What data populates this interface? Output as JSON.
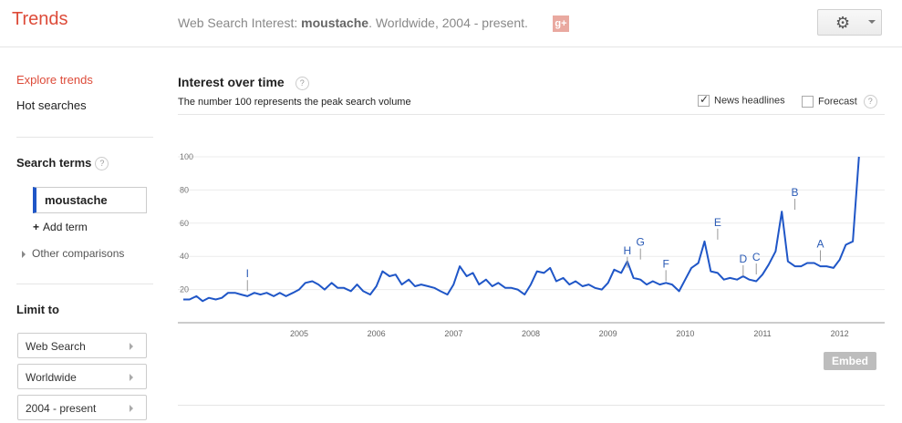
{
  "header": {
    "brand": "Trends",
    "query_prefix": "Web Search Interest: ",
    "query_term": "moustache",
    "query_suffix": ". Worldwide, 2004 - present.",
    "gplus_label": "g+",
    "gear_icon": "gear-icon"
  },
  "sidebar": {
    "nav": [
      {
        "label": "Explore trends",
        "active": true
      },
      {
        "label": "Hot searches",
        "active": false
      }
    ],
    "search_terms_label": "Search terms",
    "help_glyph": "?",
    "term": "moustache",
    "term_color": "#1f56c7",
    "add_term_label": "Add term",
    "other_comparisons_label": "Other comparisons",
    "limit_to_label": "Limit to",
    "limits": [
      "Web Search",
      "Worldwide",
      "2004 - present"
    ]
  },
  "main": {
    "title": "Interest over time",
    "subtitle": "The number 100 represents the peak search volume",
    "news_headlines_label": "News headlines",
    "news_headlines_checked": true,
    "forecast_label": "Forecast",
    "forecast_checked": false,
    "embed_label": "Embed"
  },
  "chart_data": {
    "type": "line",
    "ylim": [
      0,
      100
    ],
    "yticks": [
      20,
      40,
      60,
      80,
      100
    ],
    "ytick_labels": [
      "20",
      "40",
      "60",
      "80",
      "100"
    ],
    "xstart": 2004.0,
    "xend": 2013.0,
    "xticks": [
      2005,
      2006,
      2007,
      2008,
      2009,
      2010,
      2011,
      2012
    ],
    "xtick_labels": [
      "2005",
      "2006",
      "2007",
      "2008",
      "2009",
      "2010",
      "2011",
      "2012"
    ],
    "series": [
      {
        "color": "#1f56c7",
        "points": [
          [
            2004.0,
            14
          ],
          [
            2004.08,
            14
          ],
          [
            2004.17,
            16
          ],
          [
            2004.25,
            13
          ],
          [
            2004.33,
            15
          ],
          [
            2004.42,
            14
          ],
          [
            2004.5,
            15
          ],
          [
            2004.58,
            18
          ],
          [
            2004.67,
            18
          ],
          [
            2004.75,
            17
          ],
          [
            2004.83,
            16
          ],
          [
            2004.92,
            18
          ],
          [
            2005.0,
            17
          ],
          [
            2005.08,
            18
          ],
          [
            2005.17,
            16
          ],
          [
            2005.25,
            18
          ],
          [
            2005.33,
            16
          ],
          [
            2005.42,
            18
          ],
          [
            2005.5,
            20
          ],
          [
            2005.58,
            24
          ],
          [
            2005.67,
            25
          ],
          [
            2005.75,
            23
          ],
          [
            2005.83,
            20
          ],
          [
            2005.92,
            24
          ],
          [
            2006.0,
            21
          ],
          [
            2006.08,
            21
          ],
          [
            2006.17,
            19
          ],
          [
            2006.25,
            23
          ],
          [
            2006.33,
            19
          ],
          [
            2006.42,
            17
          ],
          [
            2006.5,
            22
          ],
          [
            2006.58,
            31
          ],
          [
            2006.67,
            28
          ],
          [
            2006.75,
            29
          ],
          [
            2006.83,
            23
          ],
          [
            2006.92,
            26
          ],
          [
            2007.0,
            22
          ],
          [
            2007.08,
            23
          ],
          [
            2007.17,
            22
          ],
          [
            2007.25,
            21
          ],
          [
            2007.33,
            19
          ],
          [
            2007.42,
            17
          ],
          [
            2007.5,
            23
          ],
          [
            2007.58,
            34
          ],
          [
            2007.67,
            28
          ],
          [
            2007.75,
            30
          ],
          [
            2007.83,
            23
          ],
          [
            2007.92,
            26
          ],
          [
            2008.0,
            22
          ],
          [
            2008.08,
            24
          ],
          [
            2008.17,
            21
          ],
          [
            2008.25,
            21
          ],
          [
            2008.33,
            20
          ],
          [
            2008.42,
            17
          ],
          [
            2008.5,
            23
          ],
          [
            2008.58,
            31
          ],
          [
            2008.67,
            30
          ],
          [
            2008.75,
            33
          ],
          [
            2008.83,
            25
          ],
          [
            2008.92,
            27
          ],
          [
            2009.0,
            23
          ],
          [
            2009.08,
            25
          ],
          [
            2009.17,
            22
          ],
          [
            2009.25,
            23
          ],
          [
            2009.33,
            21
          ],
          [
            2009.42,
            20
          ],
          [
            2009.5,
            24
          ],
          [
            2009.58,
            32
          ],
          [
            2009.67,
            30
          ],
          [
            2009.75,
            37
          ],
          [
            2009.83,
            27
          ],
          [
            2009.92,
            26
          ],
          [
            2010.0,
            23
          ],
          [
            2010.08,
            25
          ],
          [
            2010.17,
            23
          ],
          [
            2010.25,
            24
          ],
          [
            2010.33,
            23
          ],
          [
            2010.42,
            19
          ],
          [
            2010.5,
            26
          ],
          [
            2010.58,
            33
          ],
          [
            2010.67,
            36
          ],
          [
            2010.75,
            49
          ],
          [
            2010.83,
            31
          ],
          [
            2010.92,
            30
          ],
          [
            2011.0,
            26
          ],
          [
            2011.08,
            27
          ],
          [
            2011.17,
            26
          ],
          [
            2011.25,
            28
          ],
          [
            2011.33,
            26
          ],
          [
            2011.42,
            25
          ],
          [
            2011.5,
            29
          ],
          [
            2011.58,
            35
          ],
          [
            2011.67,
            43
          ],
          [
            2011.75,
            67
          ],
          [
            2011.83,
            37
          ],
          [
            2011.92,
            34
          ],
          [
            2012.0,
            34
          ],
          [
            2012.08,
            36
          ],
          [
            2012.17,
            36
          ],
          [
            2012.25,
            34
          ],
          [
            2012.33,
            34
          ],
          [
            2012.42,
            33
          ],
          [
            2012.5,
            38
          ],
          [
            2012.58,
            47
          ],
          [
            2012.67,
            49
          ],
          [
            2012.75,
            100
          ]
        ]
      }
    ],
    "annotations": [
      {
        "label": "I",
        "x": 2004.83,
        "y": 18
      },
      {
        "label": "H",
        "x": 2009.75,
        "y": 32
      },
      {
        "label": "G",
        "x": 2009.92,
        "y": 37
      },
      {
        "label": "F",
        "x": 2010.25,
        "y": 24
      },
      {
        "label": "E",
        "x": 2010.92,
        "y": 49
      },
      {
        "label": "D",
        "x": 2011.25,
        "y": 27
      },
      {
        "label": "C",
        "x": 2011.42,
        "y": 28
      },
      {
        "label": "B",
        "x": 2011.92,
        "y": 67
      },
      {
        "label": "A",
        "x": 2012.25,
        "y": 36
      }
    ]
  }
}
